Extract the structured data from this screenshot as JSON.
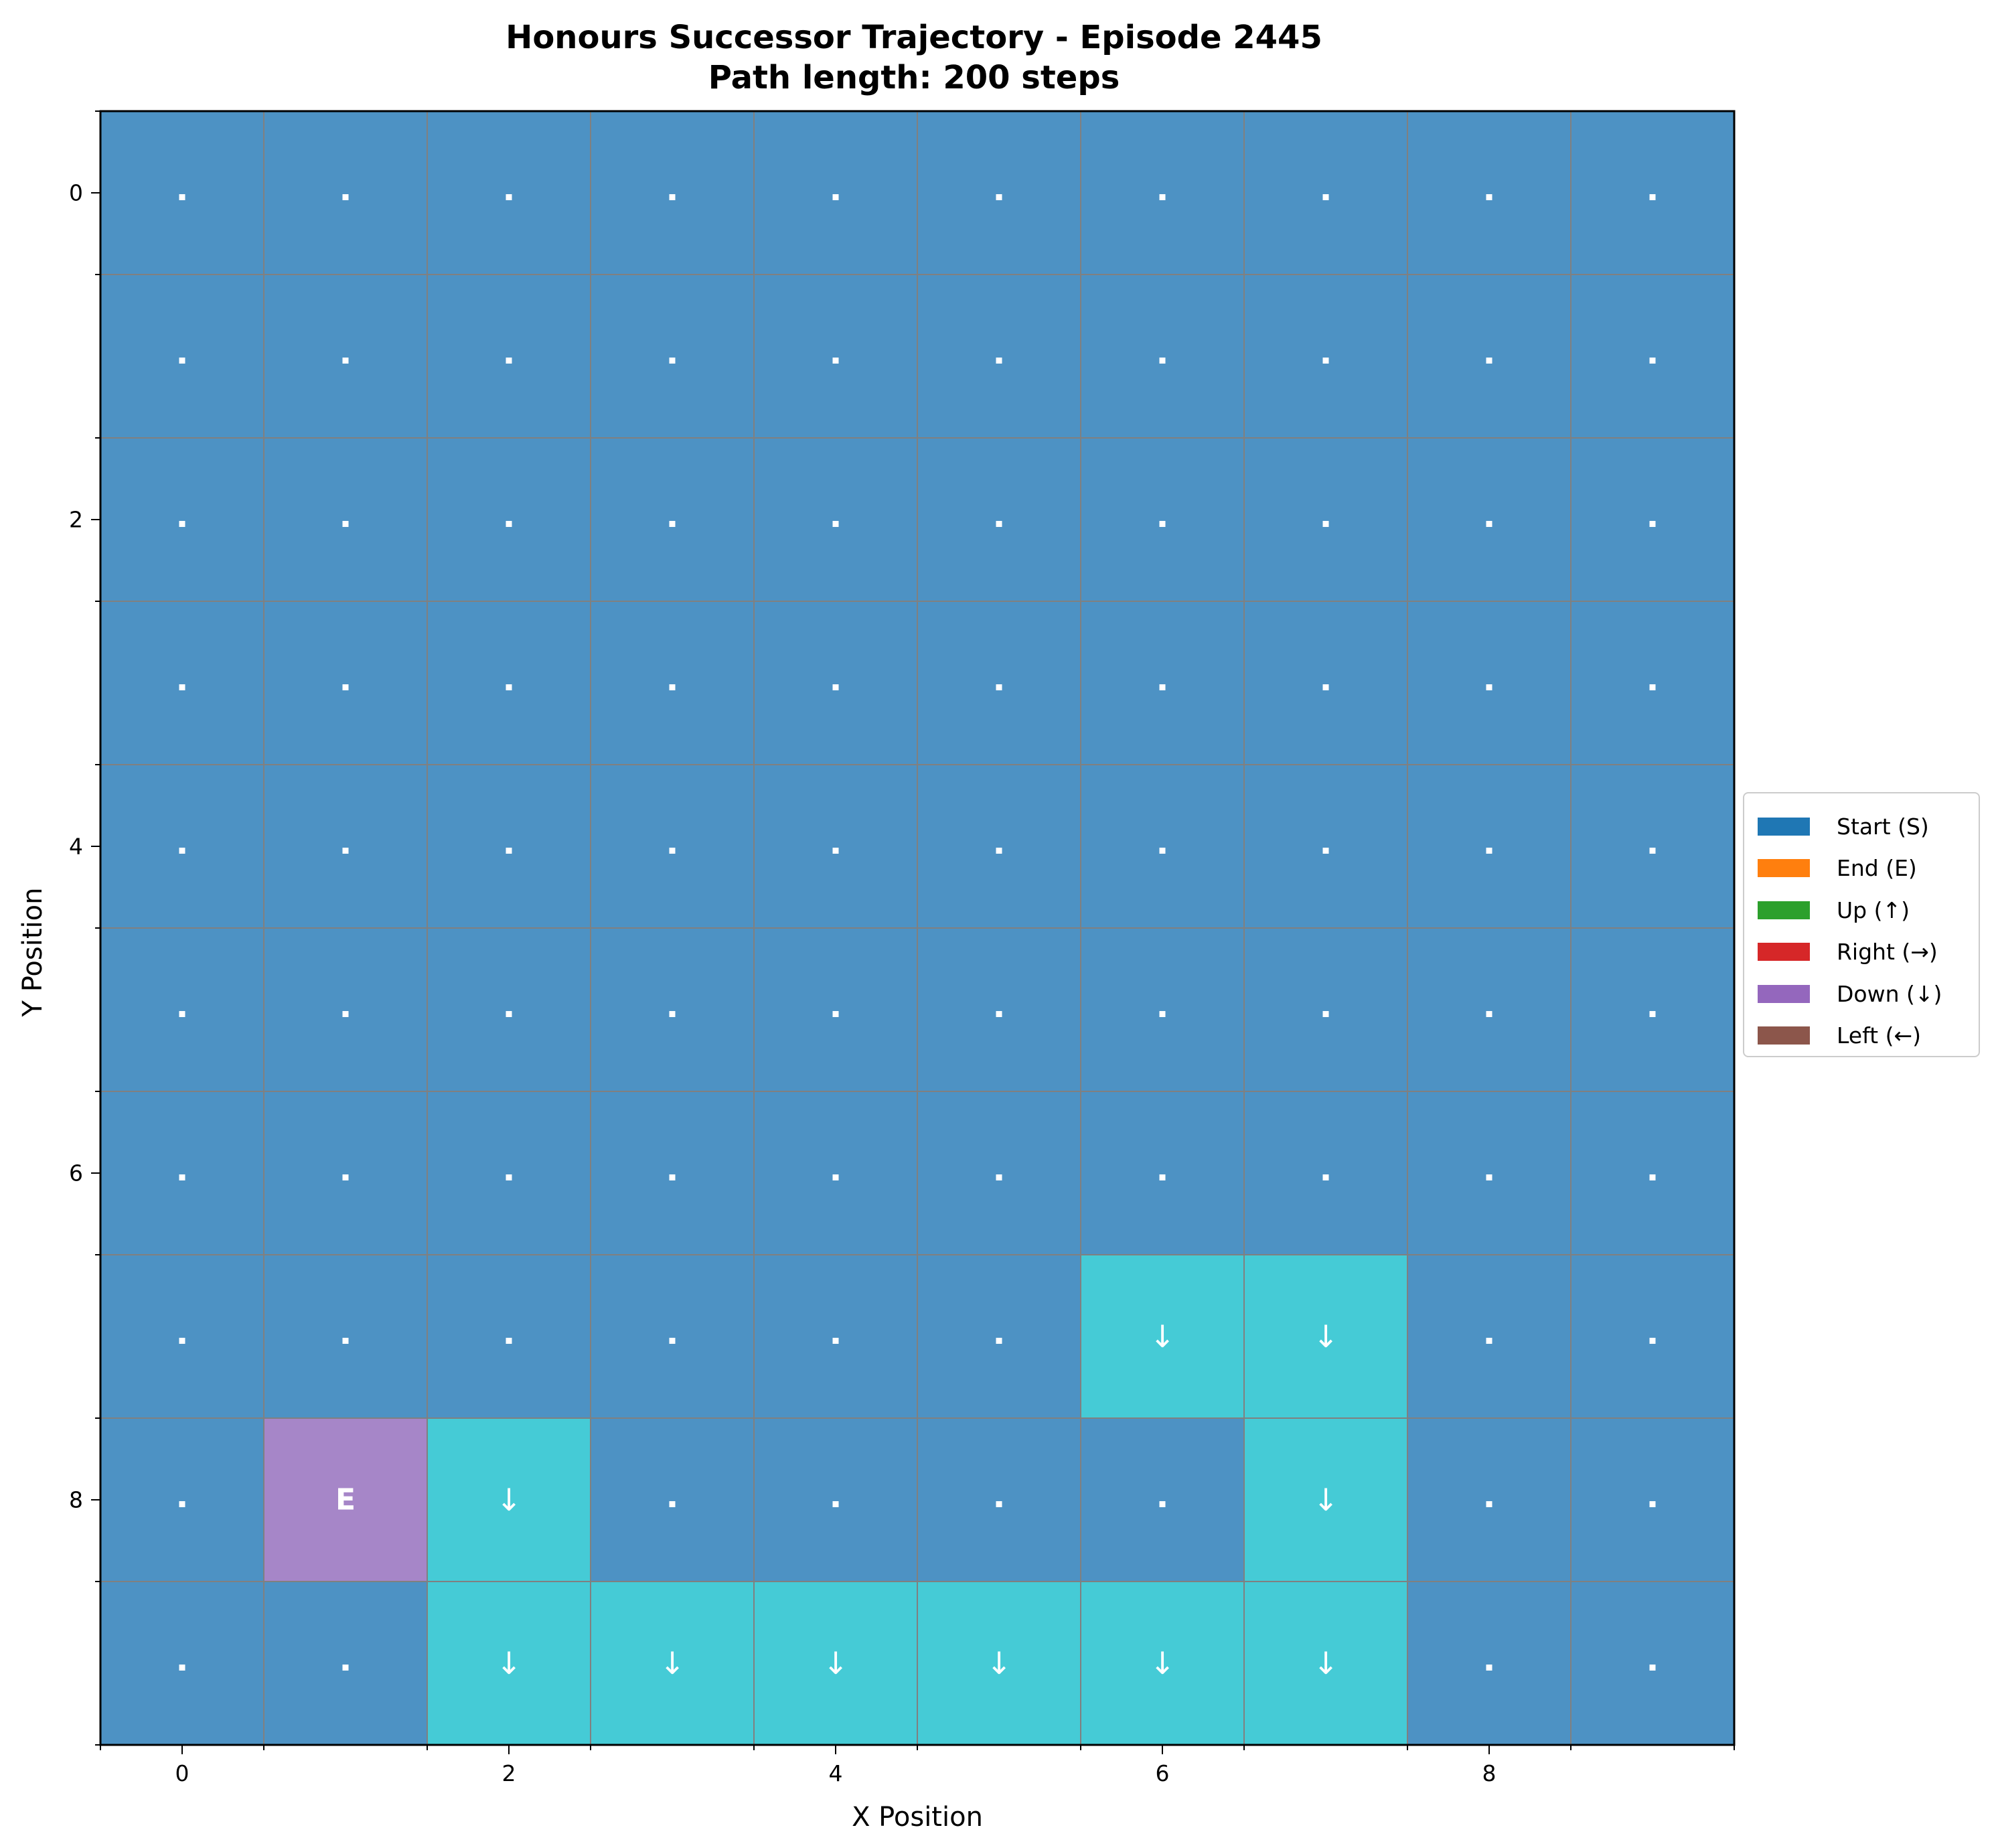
{
  "chart_data": {
    "type": "heatmap",
    "title": "Honours Successor Trajectory - Episode 2445",
    "subtitle": "Path length: 200 steps",
    "xlabel": "X Position",
    "ylabel": "Y Position",
    "x_ticks": [
      0,
      2,
      4,
      6,
      8
    ],
    "y_ticks": [
      0,
      2,
      4,
      6,
      8
    ],
    "xlim": [
      -0.5,
      9.5
    ],
    "ylim": [
      9.5,
      -0.5
    ],
    "grid": true,
    "grid_size": [
      10,
      10
    ],
    "legend_position": "center-right",
    "legend": [
      {
        "label": "Start (S)",
        "color": "#1f77b4"
      },
      {
        "label": "End (E)",
        "color": "#ff7f0e"
      },
      {
        "label": "Up (↑)",
        "color": "#2ca02c"
      },
      {
        "label": "Right (→)",
        "color": "#d62728"
      },
      {
        "label": "Down (↓)",
        "color": "#9467bd"
      },
      {
        "label": "Left (←)",
        "color": "#8c564b"
      }
    ],
    "colors": {
      "background_cell": "#4d92c4",
      "path_cell": "#45cbd6",
      "end_cell": "#a686c8",
      "cell_text": "#ffffff",
      "grid_line": "#808080"
    },
    "cells": [
      [
        "·",
        "·",
        "·",
        "·",
        "·",
        "·",
        "·",
        "·",
        "·",
        "·"
      ],
      [
        "·",
        "·",
        "·",
        "·",
        "·",
        "·",
        "·",
        "·",
        "·",
        "·"
      ],
      [
        "·",
        "·",
        "·",
        "·",
        "·",
        "·",
        "·",
        "·",
        "·",
        "·"
      ],
      [
        "·",
        "·",
        "·",
        "·",
        "·",
        "·",
        "·",
        "·",
        "·",
        "·"
      ],
      [
        "·",
        "·",
        "·",
        "·",
        "·",
        "·",
        "·",
        "·",
        "·",
        "·"
      ],
      [
        "·",
        "·",
        "·",
        "·",
        "·",
        "·",
        "·",
        "·",
        "·",
        "·"
      ],
      [
        "·",
        "·",
        "·",
        "·",
        "·",
        "·",
        "·",
        "·",
        "·",
        "·"
      ],
      [
        "·",
        "·",
        "·",
        "·",
        "·",
        "·",
        "↓",
        "↓",
        "·",
        "·"
      ],
      [
        "·",
        "E",
        "↓",
        "·",
        "·",
        "·",
        "·",
        "↓",
        "·",
        "·"
      ],
      [
        "·",
        "·",
        "↓",
        "↓",
        "↓",
        "↓",
        "↓",
        "↓",
        "·",
        "·"
      ]
    ]
  }
}
